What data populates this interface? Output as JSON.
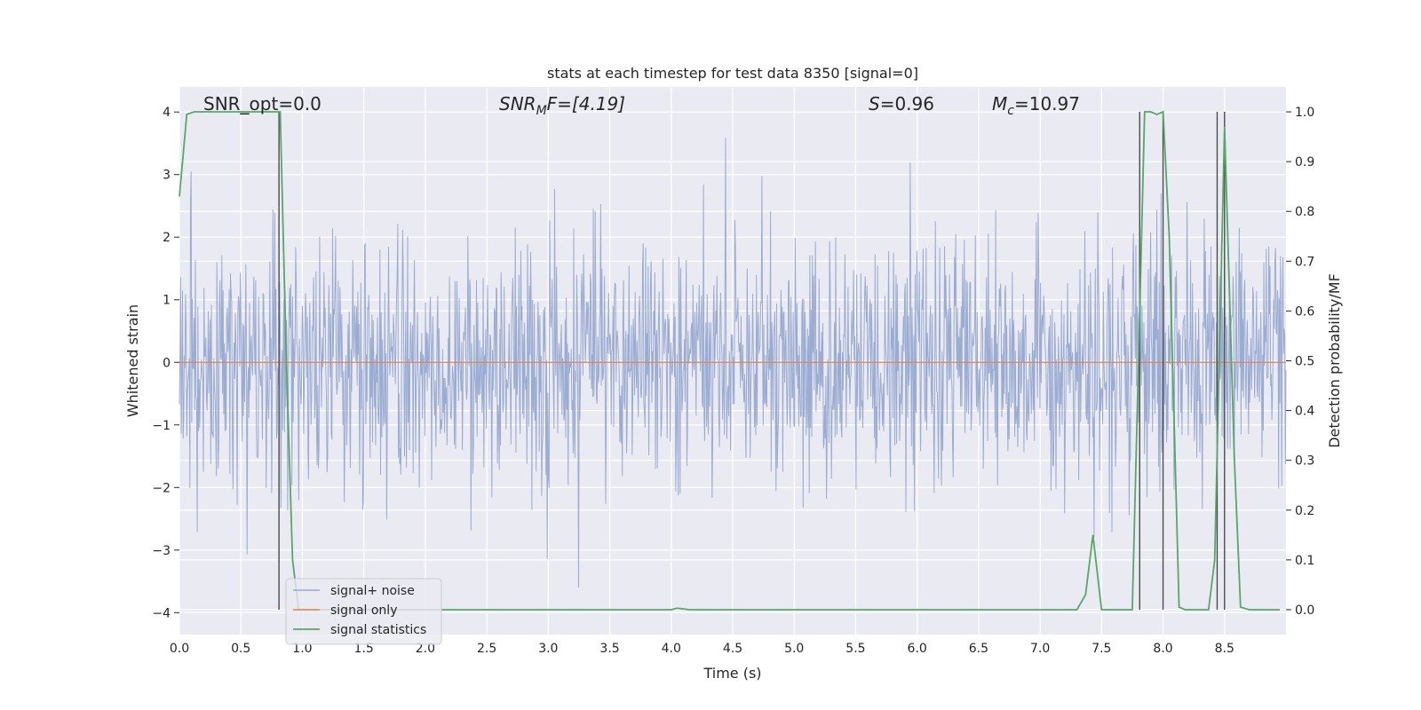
{
  "chart_data": {
    "type": "line",
    "title": "stats at each timestep for test data 8350 [signal=0]",
    "xlabel": "Time (s)",
    "ylabel": "Whitened strain",
    "ylabel_right": "Detection probability/MF",
    "xlim": [
      0.0,
      9.0
    ],
    "ylim": [
      -4.35,
      4.4
    ],
    "ylim_right": [
      -0.05,
      1.05
    ],
    "x_ticks": [
      "0.0",
      "0.5",
      "1.0",
      "1.5",
      "2.0",
      "2.5",
      "3.0",
      "3.5",
      "4.0",
      "4.5",
      "5.0",
      "5.5",
      "6.0",
      "6.5",
      "7.0",
      "7.5",
      "8.0",
      "8.5"
    ],
    "y_ticks": [
      "4",
      "3",
      "2",
      "1",
      "0",
      "−1",
      "−2",
      "−3",
      "−4"
    ],
    "y_ticks_right": [
      "1.0",
      "0.9",
      "0.8",
      "0.7",
      "0.6",
      "0.5",
      "0.4",
      "0.3",
      "0.2",
      "0.1",
      "0.0"
    ],
    "grid": true,
    "legend_position": "lower-left",
    "annotations": {
      "snr_opt": "SNR_opt=0.0",
      "snr_mf_sym": "SNR",
      "snr_mf_sub": "M",
      "snr_mf_rest": "F=[4.19]",
      "s_sym": "S",
      "s_rest": "=0.96",
      "mc_sym": "M",
      "mc_sub": "c",
      "mc_rest": "=10.97"
    },
    "vertical_markers_s": [
      0.81,
      7.81,
      8.0,
      8.44,
      8.5
    ],
    "series": [
      {
        "name": "signal+ noise",
        "color": "#97a9d0",
        "description_stats": {
          "mean": 0.0,
          "std": 0.85,
          "min": -3.95,
          "max": 4.02,
          "samples": 1800
        }
      },
      {
        "name": "signal only",
        "color": "#dd8452",
        "x": [
          0.0,
          9.0
        ],
        "y": [
          0.0,
          0.0
        ]
      },
      {
        "name": "signal statistics",
        "color": "#55a868",
        "axis": "right",
        "x": [
          0.0,
          0.06,
          0.12,
          0.3,
          0.5,
          0.6,
          0.7,
          0.8,
          0.82,
          0.87,
          0.92,
          0.97,
          1.0,
          2.0,
          3.0,
          3.5,
          4.0,
          4.05,
          4.15,
          5.0,
          6.0,
          7.0,
          7.3,
          7.37,
          7.43,
          7.5,
          7.75,
          7.8,
          7.85,
          7.9,
          7.95,
          8.0,
          8.05,
          8.13,
          8.18,
          8.37,
          8.42,
          8.5,
          8.58,
          8.63,
          8.7,
          8.95
        ],
        "y": [
          0.83,
          0.995,
          1.0,
          1.0,
          1.0,
          1.0,
          1.0,
          1.0,
          1.0,
          0.5,
          0.1,
          0.0,
          0.0,
          0.0,
          0.0,
          0.0,
          0.0,
          0.003,
          0.0,
          0.0,
          0.0,
          0.0,
          0.0,
          0.03,
          0.15,
          0.0,
          0.0,
          0.5,
          1.0,
          1.0,
          0.995,
          1.0,
          0.75,
          0.005,
          0.0,
          0.0,
          0.1,
          0.97,
          0.3,
          0.005,
          0.0,
          0.0
        ]
      }
    ]
  },
  "colors": {
    "plot_bg": "#eaeaf2",
    "grid": "#ffffff",
    "marker_line": "#4c4c4c"
  }
}
